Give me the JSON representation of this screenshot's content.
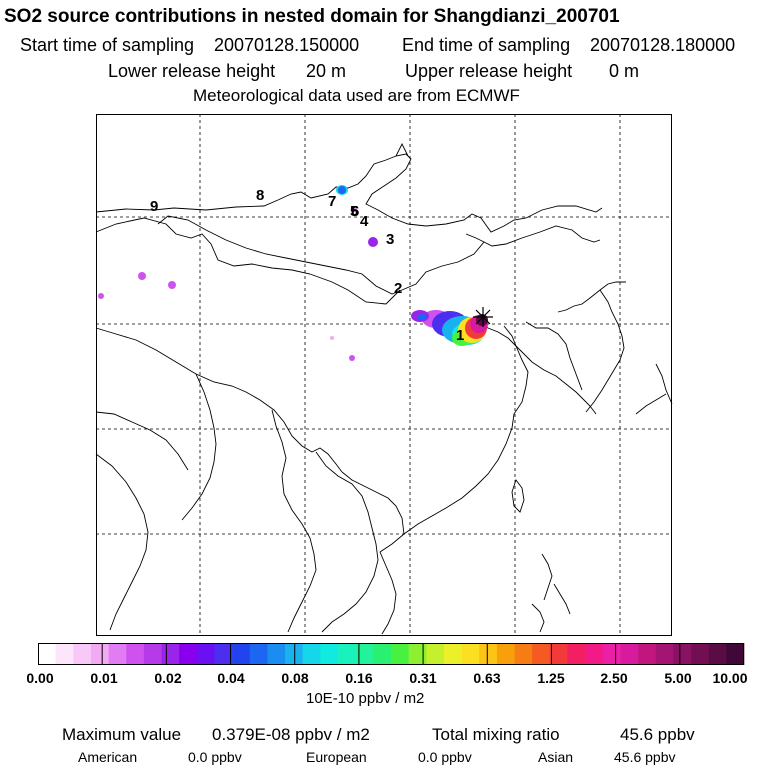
{
  "header": {
    "title": "SO2 source contributions in nested domain for Shangdianzi_200701",
    "start_label": "Start time of sampling",
    "start_value": "20070128.150000",
    "end_label": "End time of sampling",
    "end_value": "20070128.180000",
    "lower_label": "Lower release height",
    "lower_value": "20 m",
    "upper_label": "Upper release height",
    "upper_value": "0 m",
    "met_text": "Meteorological data used are from ECMWF"
  },
  "map": {
    "site_markers": [
      "1",
      "2",
      "3",
      "4",
      "5",
      "6",
      "7",
      "8",
      "9"
    ],
    "station_icon": "asterisk-station-marker"
  },
  "colorbar": {
    "tick_labels": [
      "0.00",
      "0.01",
      "0.02",
      "0.04",
      "0.08",
      "0.16",
      "0.31",
      "0.63",
      "1.25",
      "2.50",
      "5.00",
      "10.00"
    ],
    "unit": "10E-10 ppbv / m2",
    "colors": [
      "#ffffff",
      "#fde6fc",
      "#f8c8f8",
      "#f2aaf4",
      "#e27cf2",
      "#cf52ef",
      "#b63ae8",
      "#9a24ea",
      "#8800ee",
      "#6a10f2",
      "#4b2ef0",
      "#2244ee",
      "#1c66f2",
      "#1a8ef0",
      "#1ab2ee",
      "#16d6ea",
      "#10eae0",
      "#1af2be",
      "#22f29a",
      "#28f070",
      "#48f040",
      "#8cf030",
      "#c4f02c",
      "#ecf02a",
      "#fae020",
      "#fcc414",
      "#f8a00c",
      "#f67c14",
      "#f45a22",
      "#f23a3a",
      "#f41e62",
      "#f21a86",
      "#ec20a8",
      "#d81a9e",
      "#c0167e",
      "#a41472",
      "#8a1262",
      "#720f52",
      "#5a0c44",
      "#400838"
    ]
  },
  "footer": {
    "max_label": "Maximum value",
    "max_value": "0.379E-08 ppbv / m2",
    "total_label": "Total mixing ratio",
    "total_value": "45.6 ppbv",
    "american_label": "American",
    "american_value": "0.0 ppbv",
    "european_label": "European",
    "european_value": "0.0 ppbv",
    "asian_label": "Asian",
    "asian_value": "45.6 ppbv"
  }
}
